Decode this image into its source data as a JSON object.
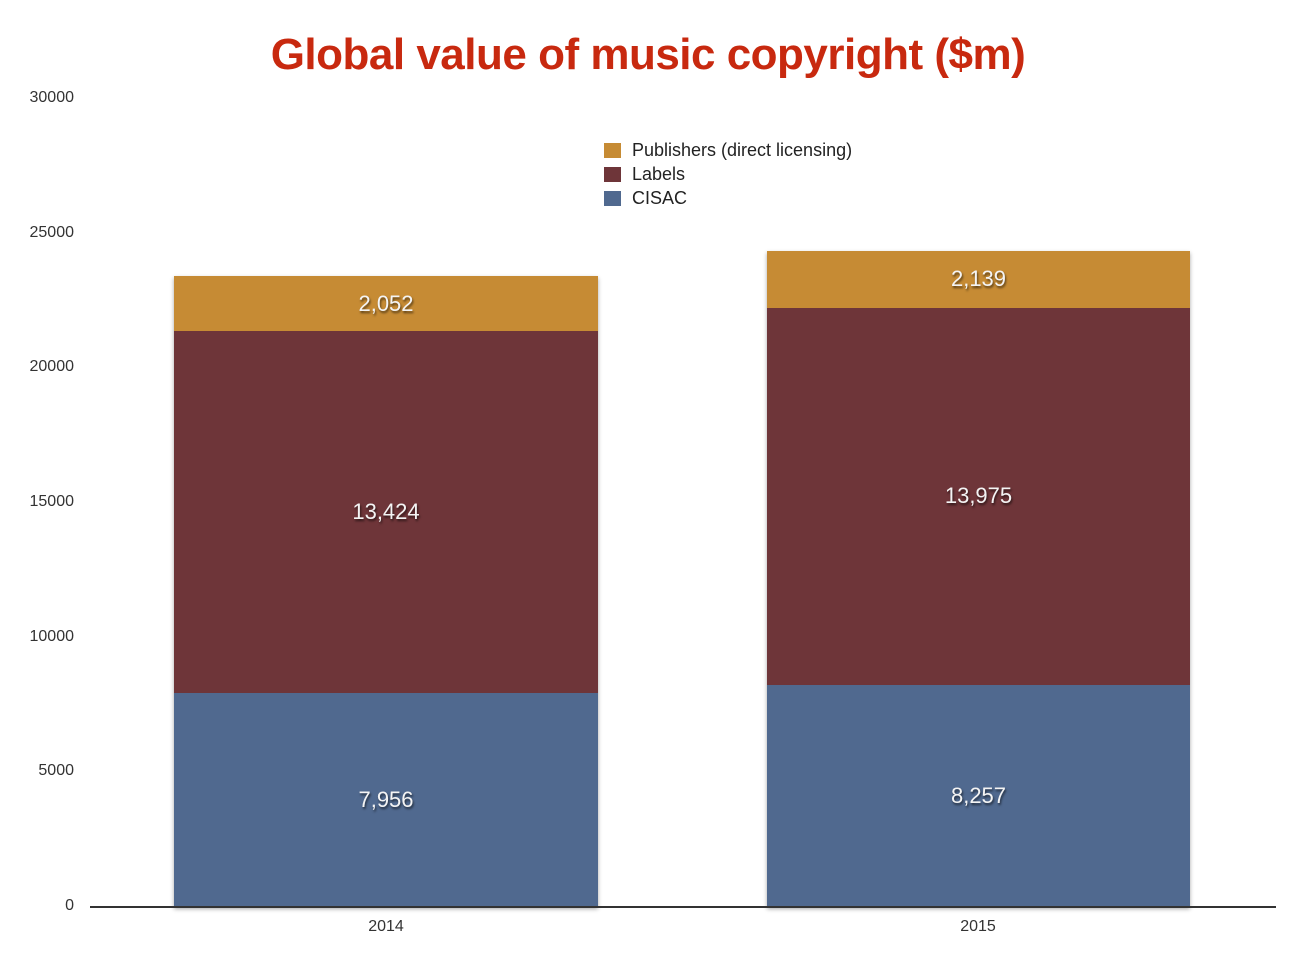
{
  "title": "Global value of music copyright ($m)",
  "colors": {
    "publishers": "#c68b34",
    "labels": "#6e3539",
    "cisac": "#50698f",
    "title": "#c8290f"
  },
  "legend": [
    {
      "label": "Publishers (direct licensing)",
      "color": "#c68b34"
    },
    {
      "label": "Labels",
      "color": "#6e3539"
    },
    {
      "label": "CISAC",
      "color": "#50698f"
    }
  ],
  "yaxis": {
    "ticks": [
      "0",
      "5000",
      "10000",
      "15000",
      "20000",
      "25000",
      "30000"
    ]
  },
  "xaxis": {
    "ticks": [
      "2014",
      "2015"
    ]
  },
  "bars": [
    {
      "year": "2014",
      "cisac": "7,956",
      "labels": "13,424",
      "publishers": "2,052"
    },
    {
      "year": "2015",
      "cisac": "8,257",
      "labels": "13,975",
      "publishers": "2,139"
    }
  ],
  "chart_data": {
    "type": "bar",
    "stacked": true,
    "title": "Global value of music copyright ($m)",
    "xlabel": "",
    "ylabel": "",
    "categories": [
      "2014",
      "2015"
    ],
    "series": [
      {
        "name": "CISAC",
        "values": [
          7956,
          8257
        ]
      },
      {
        "name": "Labels",
        "values": [
          13424,
          13975
        ]
      },
      {
        "name": "Publishers (direct licensing)",
        "values": [
          2052,
          2139
        ]
      }
    ],
    "ylim": [
      0,
      30000
    ],
    "yticks": [
      0,
      5000,
      10000,
      15000,
      20000,
      25000,
      30000
    ],
    "grid": false,
    "legend_position": "top-center"
  }
}
